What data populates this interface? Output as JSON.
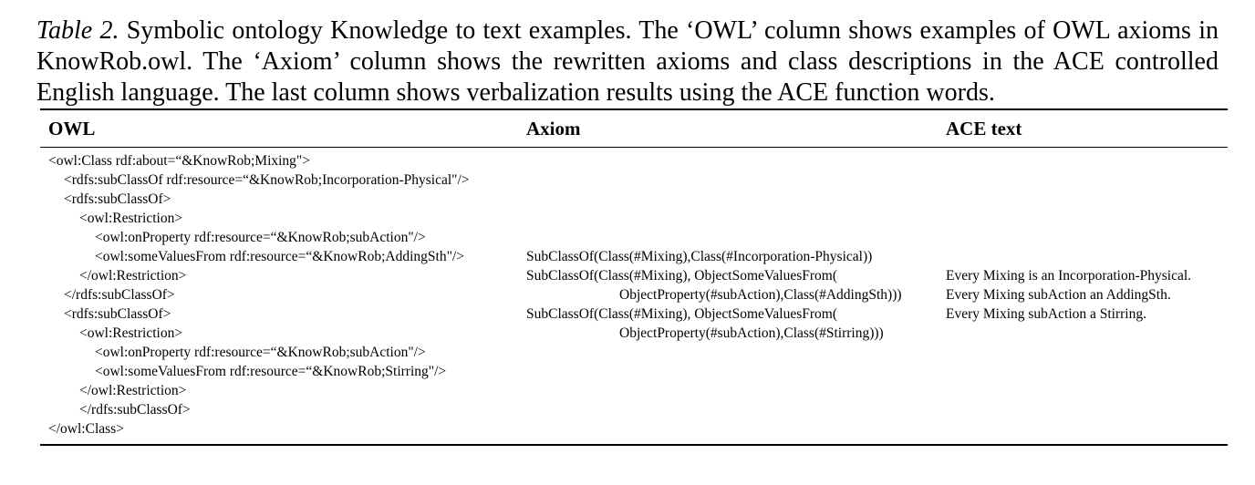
{
  "caption": {
    "label": "Table 2.",
    "text": " Symbolic ontology Knowledge to text examples.  The ‘OWL’ column shows examples of OWL axioms in KnowRob.owl. The ‘Axiom’ column shows the rewritten axioms and class descriptions in the ACE controlled English language. The last column shows verbalization results using the ACE function words."
  },
  "table": {
    "headers": {
      "owl": "OWL",
      "axiom": "Axiom",
      "ace": "ACE text"
    },
    "owl_lines": [
      "<owl:Class rdf:about=“&KnowRob;Mixing\">",
      "<rdfs:subClassOf rdf:resource=“&KnowRob;Incorporation-Physical\"/>",
      "<rdfs:subClassOf>",
      "<owl:Restriction>",
      "<owl:onProperty rdf:resource=“&KnowRob;subAction\"/>",
      "<owl:someValuesFrom rdf:resource=“&KnowRob;AddingSth\"/>",
      "</owl:Restriction>",
      "</rdfs:subClassOf>",
      "<rdfs:subClassOf>",
      "<owl:Restriction>",
      "<owl:onProperty rdf:resource=“&KnowRob;subAction\"/>",
      "<owl:someValuesFrom rdf:resource=“&KnowRob;Stirring\"/>",
      "</owl:Restriction>",
      "</rdfs:subClassOf>",
      "</owl:Class>"
    ],
    "axiom_lines": [
      "SubClassOf(Class(#Mixing),Class(#Incorporation-Physical))",
      "SubClassOf(Class(#Mixing), ObjectSomeValuesFrom(",
      "ObjectProperty(#subAction),Class(#AddingSth)))",
      "SubClassOf(Class(#Mixing), ObjectSomeValuesFrom(",
      "ObjectProperty(#subAction),Class(#Stirring)))"
    ],
    "ace_lines": [
      "Every Mixing is an Incorporation-Physical.",
      "Every Mixing subAction an AddingSth.",
      "Every Mixing subAction a Stirring."
    ]
  }
}
